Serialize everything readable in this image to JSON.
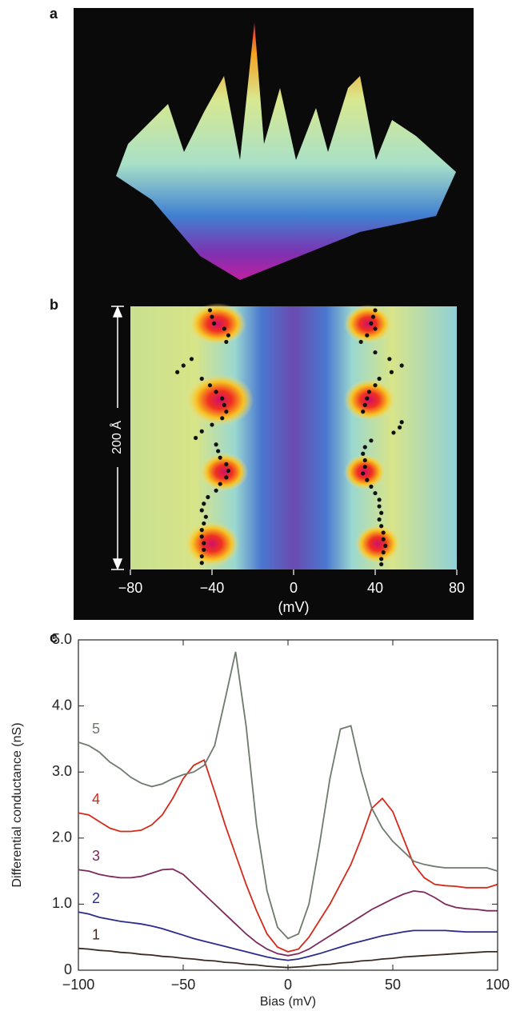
{
  "chart_data": [
    {
      "type": "surface",
      "label": "a"
    },
    {
      "type": "heatmap",
      "label": "b",
      "xlabel": "(mV)",
      "scale_bar": "200 Å",
      "xlim": [
        -80,
        80
      ],
      "xticks": [
        {
          "value": -80,
          "label": "−80"
        },
        {
          "value": -40,
          "label": "−40"
        },
        0,
        40,
        80
      ],
      "ylim": [
        0,
        200
      ],
      "series": [
        {
          "color": "#111111",
          "x": [
            -41,
            -40,
            -39,
            -34,
            -32,
            -33,
            -50,
            -54,
            -57,
            -45,
            -41,
            -38,
            -35,
            -34,
            -33,
            -35,
            -40,
            -45,
            -48,
            -38,
            -37,
            -36,
            -33,
            -32,
            -33,
            -36,
            -38,
            -42,
            -44,
            -45,
            -43,
            -44,
            -45,
            -45,
            -44,
            -44,
            -45,
            -45
          ],
          "y": [
            197,
            192,
            187,
            183,
            178,
            173,
            160,
            155,
            150,
            145,
            140,
            135,
            130,
            125,
            120,
            115,
            110,
            105,
            100,
            95,
            90,
            85,
            80,
            75,
            70,
            65,
            60,
            55,
            50,
            45,
            40,
            35,
            30,
            25,
            20,
            15,
            10,
            5
          ]
        },
        {
          "color": "#111111",
          "x": [
            40,
            39,
            38,
            40,
            36,
            33,
            40,
            47,
            53,
            48,
            42,
            40,
            37,
            36,
            35,
            34,
            53,
            52,
            49,
            38,
            35,
            34,
            35,
            35,
            34,
            36,
            38,
            40,
            42,
            42,
            43,
            42,
            43,
            44,
            44,
            45,
            44,
            43,
            43
          ],
          "y": [
            197,
            192,
            187,
            183,
            178,
            173,
            165,
            160,
            155,
            150,
            145,
            140,
            135,
            130,
            125,
            120,
            112,
            108,
            104,
            98,
            93,
            88,
            83,
            78,
            73,
            68,
            63,
            58,
            53,
            48,
            43,
            38,
            33,
            28,
            23,
            18,
            13,
            8,
            4
          ]
        }
      ]
    },
    {
      "type": "line",
      "label": "c",
      "xlabel": "Bias (mV)",
      "ylabel": "Differential conductance (nS)",
      "x": [
        -100,
        -95,
        -90,
        -85,
        -80,
        -75,
        -70,
        -65,
        -60,
        -55,
        -50,
        -45,
        -40,
        -35,
        -30,
        -25,
        -20,
        -15,
        -10,
        -5,
        0,
        5,
        10,
        15,
        20,
        25,
        30,
        35,
        40,
        45,
        50,
        55,
        60,
        65,
        70,
        75,
        80,
        85,
        90,
        95,
        100
      ],
      "xlim": [
        -100,
        100
      ],
      "xticks": [
        {
          "value": -100,
          "label": "−100"
        },
        {
          "value": -50,
          "label": "−50"
        },
        0,
        50,
        100
      ],
      "ylim": [
        0,
        5
      ],
      "yticks": [
        0,
        {
          "value": 1,
          "label": "1.0"
        },
        {
          "value": 2,
          "label": "2.0"
        },
        {
          "value": 3,
          "label": "3.0"
        },
        {
          "value": 4,
          "label": "4.0"
        },
        {
          "value": 5,
          "label": "5.0"
        }
      ],
      "series": [
        {
          "name": "1",
          "color": "#3b2a22",
          "values": [
            0.33,
            0.32,
            0.3,
            0.29,
            0.27,
            0.26,
            0.24,
            0.23,
            0.21,
            0.2,
            0.18,
            0.17,
            0.15,
            0.14,
            0.12,
            0.11,
            0.09,
            0.08,
            0.06,
            0.05,
            0.04,
            0.05,
            0.06,
            0.08,
            0.09,
            0.11,
            0.12,
            0.14,
            0.15,
            0.17,
            0.18,
            0.2,
            0.21,
            0.22,
            0.23,
            0.24,
            0.25,
            0.26,
            0.27,
            0.28,
            0.28
          ]
        },
        {
          "name": "2",
          "color": "#2b2b8c",
          "values": [
            0.88,
            0.85,
            0.8,
            0.77,
            0.74,
            0.72,
            0.7,
            0.67,
            0.63,
            0.58,
            0.53,
            0.48,
            0.44,
            0.4,
            0.36,
            0.32,
            0.28,
            0.24,
            0.2,
            0.17,
            0.15,
            0.17,
            0.21,
            0.25,
            0.3,
            0.35,
            0.4,
            0.44,
            0.48,
            0.52,
            0.55,
            0.58,
            0.6,
            0.6,
            0.6,
            0.6,
            0.59,
            0.58,
            0.58,
            0.58,
            0.58
          ]
        },
        {
          "name": "3",
          "color": "#7c2a5c",
          "values": [
            1.52,
            1.5,
            1.45,
            1.42,
            1.4,
            1.4,
            1.42,
            1.47,
            1.52,
            1.53,
            1.45,
            1.3,
            1.15,
            1.0,
            0.85,
            0.7,
            0.55,
            0.42,
            0.32,
            0.25,
            0.22,
            0.25,
            0.32,
            0.42,
            0.52,
            0.62,
            0.72,
            0.82,
            0.92,
            1.0,
            1.08,
            1.15,
            1.2,
            1.18,
            1.1,
            1.0,
            0.95,
            0.93,
            0.92,
            0.9,
            0.9
          ]
        },
        {
          "name": "4",
          "color": "#d42a1a",
          "values": [
            2.38,
            2.35,
            2.25,
            2.15,
            2.1,
            2.1,
            2.12,
            2.2,
            2.35,
            2.6,
            2.9,
            3.1,
            3.18,
            2.7,
            2.2,
            1.75,
            1.3,
            0.9,
            0.55,
            0.35,
            0.28,
            0.32,
            0.5,
            0.75,
            1.0,
            1.3,
            1.6,
            2.0,
            2.45,
            2.6,
            2.4,
            2.0,
            1.6,
            1.4,
            1.3,
            1.28,
            1.27,
            1.25,
            1.25,
            1.25,
            1.3
          ]
        },
        {
          "name": "5",
          "color": "#6e7a6e",
          "values": [
            3.45,
            3.4,
            3.3,
            3.15,
            3.05,
            2.92,
            2.83,
            2.78,
            2.82,
            2.9,
            2.96,
            3.0,
            3.1,
            3.4,
            4.1,
            4.82,
            3.7,
            2.2,
            1.2,
            0.65,
            0.48,
            0.55,
            1.0,
            1.9,
            2.9,
            3.65,
            3.7,
            3.0,
            2.45,
            2.15,
            1.95,
            1.8,
            1.65,
            1.6,
            1.57,
            1.55,
            1.55,
            1.55,
            1.55,
            1.55,
            1.5
          ]
        }
      ]
    }
  ]
}
